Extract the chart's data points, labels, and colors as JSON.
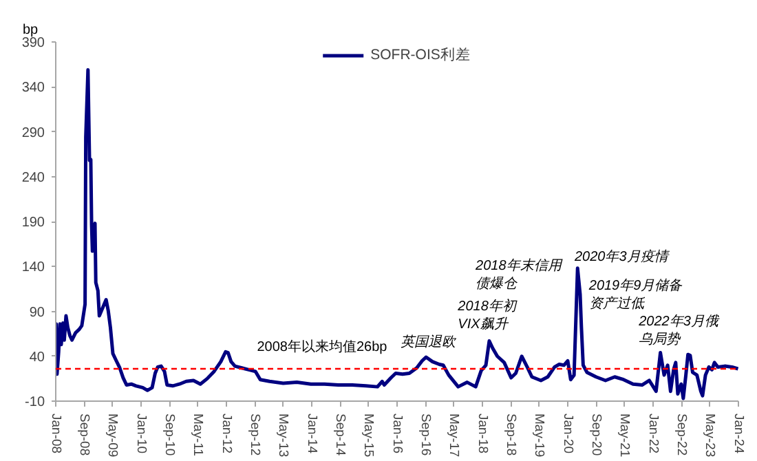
{
  "chart_data": {
    "type": "line",
    "ylabel": "bp",
    "legend": "top",
    "xlim": [
      "2008-01",
      "2024-01"
    ],
    "xticks": [
      {
        "value": "2008-01",
        "label": "Jan-08"
      },
      {
        "value": "2008-09",
        "label": "Sep-08"
      },
      {
        "value": "2009-05",
        "label": "May-09"
      },
      {
        "value": "2010-01",
        "label": "Jan-10"
      },
      {
        "value": "2010-09",
        "label": "Sep-10"
      },
      {
        "value": "2011-05",
        "label": "May-11"
      },
      {
        "value": "2012-01",
        "label": "Jan-12"
      },
      {
        "value": "2012-09",
        "label": "Sep-12"
      },
      {
        "value": "2013-05",
        "label": "May-13"
      },
      {
        "value": "2014-01",
        "label": "Jan-14"
      },
      {
        "value": "2014-09",
        "label": "Sep-14"
      },
      {
        "value": "2015-05",
        "label": "May-15"
      },
      {
        "value": "2016-01",
        "label": "Jan-16"
      },
      {
        "value": "2016-09",
        "label": "Sep-16"
      },
      {
        "value": "2017-05",
        "label": "May-17"
      },
      {
        "value": "2018-01",
        "label": "Jan-18"
      },
      {
        "value": "2018-09",
        "label": "Sep-18"
      },
      {
        "value": "2019-05",
        "label": "May-19"
      },
      {
        "value": "2020-01",
        "label": "Jan-20"
      },
      {
        "value": "2020-09",
        "label": "Sep-20"
      },
      {
        "value": "2021-05",
        "label": "May-21"
      },
      {
        "value": "2022-01",
        "label": "Jan-22"
      },
      {
        "value": "2022-09",
        "label": "Sep-22"
      },
      {
        "value": "2023-05",
        "label": "May-23"
      },
      {
        "value": "2024-01",
        "label": "Jan-24"
      }
    ],
    "ylim": [
      -10,
      390
    ],
    "yticks": [
      -10,
      40,
      90,
      140,
      190,
      240,
      290,
      340,
      390
    ],
    "x": [
      "2008-01-01",
      "2008-01-05",
      "2008-01-12",
      "2008-01-26",
      "2008-02-06",
      "2008-02-17",
      "2008-03-03",
      "2008-03-14",
      "2008-03-29",
      "2008-04-13",
      "2008-05-01",
      "2008-05-19",
      "2008-06-18",
      "2008-07-20",
      "2008-08-11",
      "2008-09-08",
      "2008-09-14",
      "2008-10-03",
      "2008-10-16",
      "2008-10-27",
      "2008-11-03",
      "2008-11-10",
      "2008-11-21",
      "2008-12-02",
      "2008-12-09",
      "2008-12-27",
      "2009-01-08",
      "2009-02-06",
      "2009-03-07",
      "2009-03-25",
      "2009-04-13",
      "2009-05-04",
      "2009-06-02",
      "2009-07-02",
      "2009-07-31",
      "2009-08-29",
      "2009-10-09",
      "2009-11-18",
      "2010-01-15",
      "2010-02-24",
      "2010-04-05",
      "2010-05-01",
      "2010-05-23",
      "2010-06-21",
      "2010-07-20",
      "2010-08-11",
      "2010-09-28",
      "2010-11-25",
      "2011-01-22",
      "2011-03-25",
      "2011-05-23",
      "2011-07-20",
      "2011-09-17",
      "2011-11-14",
      "2011-12-25",
      "2012-01-15",
      "2012-02-10",
      "2012-03-14",
      "2012-05-12",
      "2012-07-10",
      "2012-09-06",
      "2012-10-17",
      "2013-01-04",
      "2013-05-01",
      "2013-08-26",
      "2013-12-24",
      "2014-04-20",
      "2014-08-15",
      "2014-12-13",
      "2015-04-09",
      "2015-07-17",
      "2015-08-26",
      "2015-09-13",
      "2015-11-10",
      "2015-12-20",
      "2016-02-17",
      "2016-04-15",
      "2016-06-17",
      "2016-08-03",
      "2016-09-05",
      "2016-10-30",
      "2016-12-27",
      "2017-01-30",
      "2017-03-18",
      "2017-06-07",
      "2017-08-23",
      "2017-11-04",
      "2017-12-21",
      "2018-01-30",
      "2018-02-28",
      "2018-03-29",
      "2018-05-08",
      "2018-07-06",
      "2018-09-03",
      "2018-10-13",
      "2018-12-03",
      "2019-01-19",
      "2019-02-28",
      "2019-05-16",
      "2019-07-14",
      "2019-09-10",
      "2019-10-20",
      "2019-11-29",
      "2020-01-01",
      "2020-01-26",
      "2020-02-24",
      "2020-03-25",
      "2020-04-16",
      "2020-04-27",
      "2020-05-12",
      "2020-06-14",
      "2020-08-30",
      "2020-11-19",
      "2021-02-06",
      "2021-04-23",
      "2021-07-13",
      "2021-09-28",
      "2021-11-29",
      "2022-01-26",
      "2022-03-04",
      "2022-04-05",
      "2022-05-05",
      "2022-05-30",
      "2022-06-25",
      "2022-07-13",
      "2022-07-31",
      "2022-08-29",
      "2022-09-16",
      "2022-10-08",
      "2022-10-26",
      "2022-11-14",
      "2022-12-05",
      "2023-01-11",
      "2023-02-13",
      "2023-02-28",
      "2023-03-25",
      "2023-04-23",
      "2023-05-19",
      "2023-06-10",
      "2023-07-09",
      "2023-09-06",
      "2023-11-07",
      "2023-12-29"
    ],
    "series": [
      {
        "name": "SOFR-OIS利差",
        "color": "#000080",
        "values": [
          40,
          76,
          20,
          45,
          76,
          53,
          77,
          58,
          85,
          72,
          63,
          58,
          66,
          70,
          74,
          98,
          284,
          359,
          258,
          259,
          186,
          157,
          180,
          188,
          122,
          113,
          85,
          94,
          103,
          91,
          72,
          43,
          35,
          27,
          16,
          8,
          9,
          7,
          5,
          2,
          5,
          21,
          28,
          29,
          23,
          8,
          7,
          9,
          12,
          13,
          9,
          15,
          23,
          34,
          45,
          44,
          34,
          29,
          27,
          25,
          23,
          14,
          12,
          10,
          11,
          9,
          9,
          8,
          8,
          7,
          6,
          12,
          8,
          16,
          21,
          20,
          21,
          27,
          35,
          39,
          34,
          31,
          30,
          19,
          6,
          11,
          6,
          24,
          30,
          57,
          49,
          40,
          33,
          16,
          21,
          40,
          28,
          17,
          13,
          17,
          28,
          31,
          30,
          35,
          14,
          19,
          138,
          109,
          72,
          30,
          22,
          17,
          13,
          17,
          14,
          9,
          8,
          13,
          1,
          44,
          19,
          30,
          1,
          25,
          33,
          -2,
          9,
          -7,
          19,
          42,
          41,
          22,
          19,
          1,
          -4,
          19,
          28,
          25,
          33,
          28,
          29,
          28,
          26
        ]
      }
    ],
    "ref_lines": [
      {
        "axis": "y",
        "value": 26,
        "label": "2008年以来均值26bp",
        "color": "#ff0000",
        "line_style": "dashed"
      }
    ],
    "annotations": [
      "英国退欧",
      "2018年初VIX飙升",
      "2018年末信用债爆仓",
      "2019年9月储备资产过低",
      "2020年3月疫情",
      "2022年3月俄乌局势"
    ]
  }
}
